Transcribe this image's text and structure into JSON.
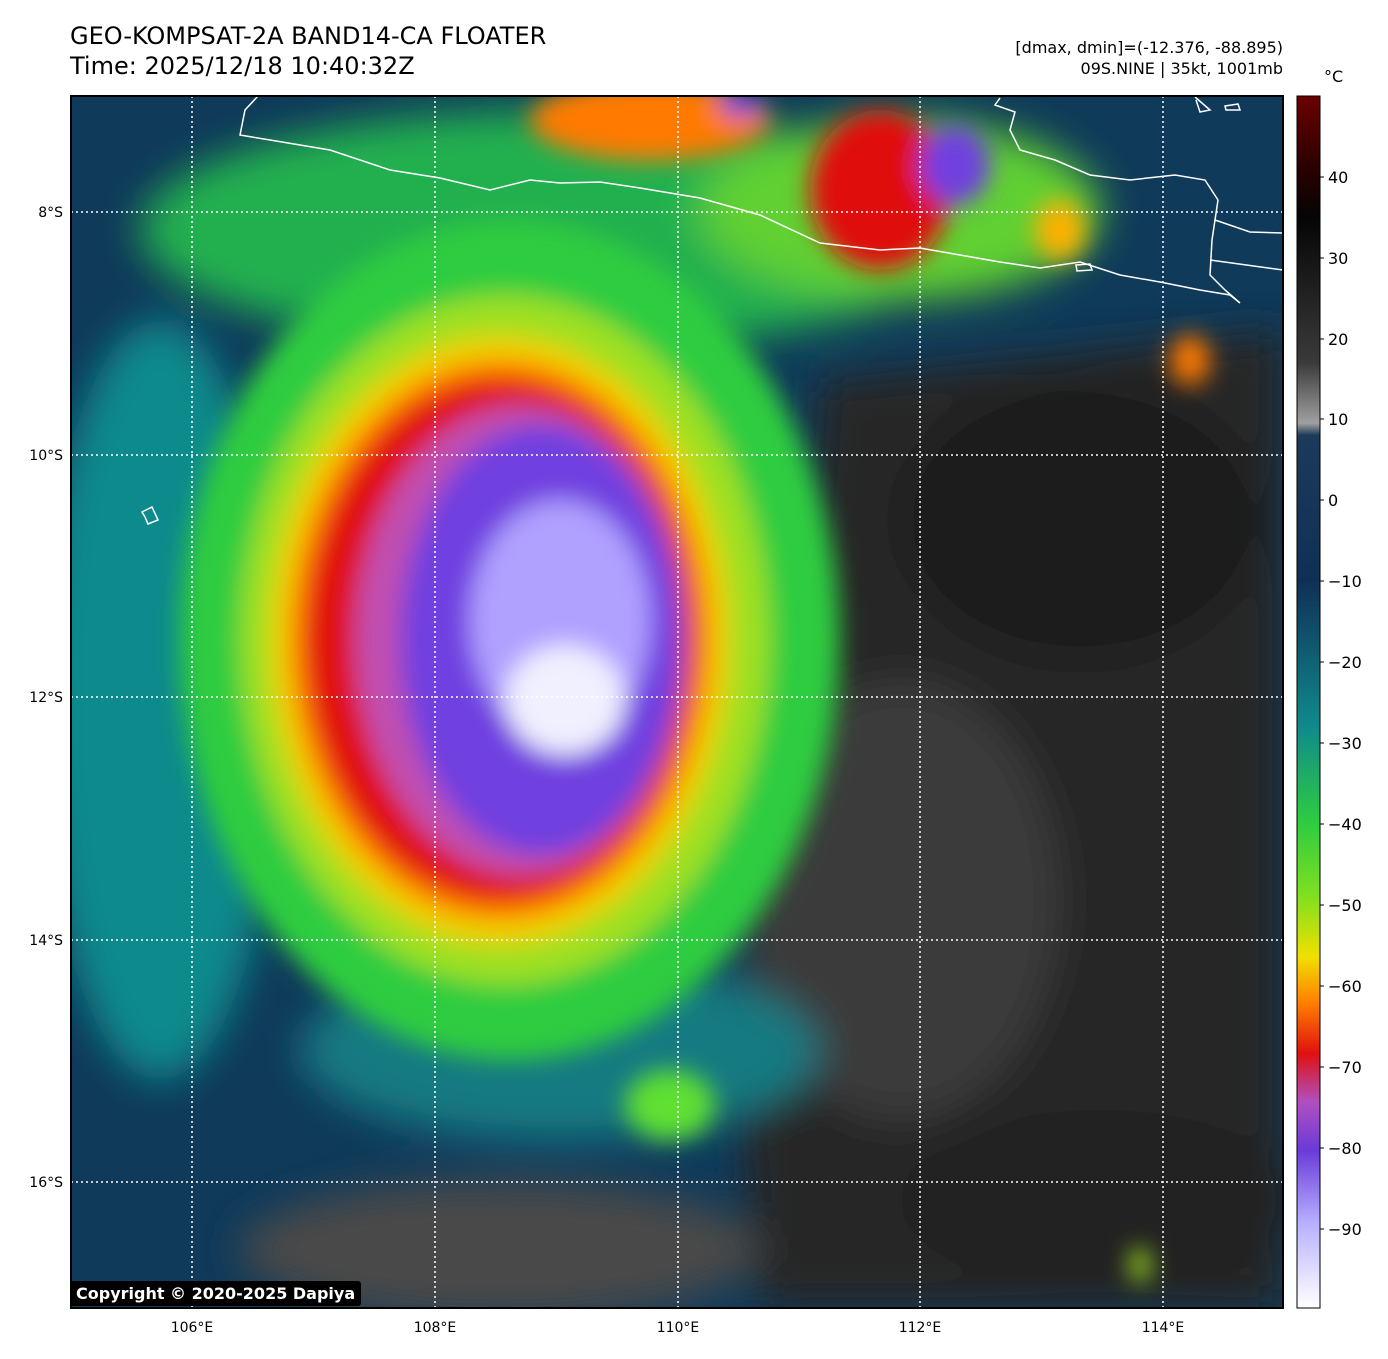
{
  "header": {
    "title_line1": "GEO-KOMPSAT-2A BAND14-CA FLOATER",
    "title_line2": "Time: 2025/12/18 10:40:32Z",
    "info_line1": "[dmax, dmin]=(-12.376, -88.895)",
    "info_line2": "09S.NINE | 35kt, 1001mb"
  },
  "map": {
    "lon_labels": [
      "106°E",
      "108°E",
      "110°E",
      "112°E",
      "114°E"
    ],
    "lat_labels": [
      "8°S",
      "10°S",
      "12°S",
      "14°S",
      "16°S"
    ],
    "storm_center": {
      "lat": -11.7,
      "lon": 109.1
    },
    "gridlines": "dotted-white"
  },
  "colorbar": {
    "unit": "°C",
    "ticks": [
      "40",
      "30",
      "20",
      "10",
      "0",
      "−10",
      "−20",
      "−30",
      "−40",
      "−50",
      "−60",
      "−70",
      "−80",
      "−90"
    ],
    "colors": {
      "warm_top": "#6b0000",
      "black": "#0a0a0a",
      "gray": "#8c8c8c",
      "navy": "#0f3056",
      "teal": "#0f8a8c",
      "green": "#2ecc40",
      "lime": "#7fe020",
      "yellow": "#f0e000",
      "orange": "#ff7a00",
      "red": "#e01010",
      "purple": "#8a52e6",
      "lavender": "#c8c0ff",
      "white": "#ffffff"
    }
  },
  "footer": {
    "copyright": "Copyright © 2020-2025 Dapiya"
  }
}
